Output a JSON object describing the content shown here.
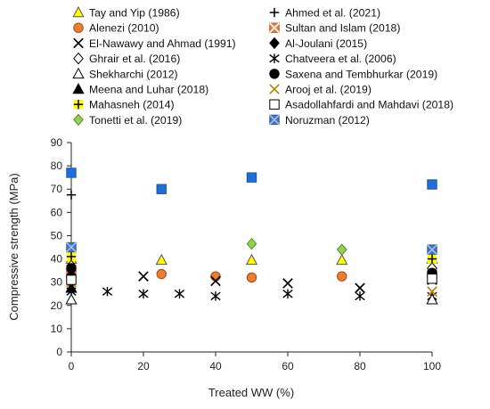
{
  "chart_data": {
    "type": "scatter",
    "title": "",
    "xlabel": "Treated WW (%)",
    "ylabel": "Compressive strength (MPa)",
    "xlim": [
      0,
      100
    ],
    "ylim": [
      0,
      90
    ],
    "xticks": [
      0,
      20,
      40,
      60,
      80,
      100
    ],
    "yticks": [
      0,
      10,
      20,
      30,
      40,
      50,
      60,
      70,
      80,
      90
    ],
    "grid": false,
    "legend_position": "top",
    "series": [
      {
        "name": "Tay and Yip (1986)",
        "marker": "triangle",
        "fill": "#ffff00",
        "stroke": "#555555",
        "points": [
          [
            0,
            40
          ],
          [
            25,
            39.5
          ],
          [
            50,
            39.5
          ],
          [
            75,
            39.5
          ],
          [
            100,
            40
          ]
        ]
      },
      {
        "name": "Ahmed et al. (2021)",
        "marker": "plus",
        "fill": "none",
        "stroke": "#000000",
        "points": [
          [
            0,
            67.5
          ]
        ]
      },
      {
        "name": "Alenezi (2010)",
        "marker": "circle",
        "fill": "#ed7d31",
        "stroke": "#a04a10",
        "points": [
          [
            0,
            35
          ],
          [
            25,
            33.5
          ],
          [
            40,
            32.5
          ],
          [
            50,
            32
          ],
          [
            75,
            32.5
          ],
          [
            100,
            32
          ]
        ]
      },
      {
        "name": "Sultan and Islam (2018)",
        "marker": "square-x",
        "fill": "#ed7d31",
        "stroke": "#c0504d",
        "points": [
          [
            0,
            34
          ],
          [
            100,
            33.5
          ]
        ]
      },
      {
        "name": "El-Nawawy and Ahmad (1991)",
        "marker": "x",
        "fill": "none",
        "stroke": "#000000",
        "points": [
          [
            0,
            28
          ],
          [
            20,
            32.5
          ],
          [
            40,
            30.5
          ],
          [
            60,
            29.5
          ],
          [
            80,
            27.5
          ],
          [
            100,
            31
          ]
        ]
      },
      {
        "name": "Al-Joulani (2015)",
        "marker": "diamond",
        "fill": "#000000",
        "stroke": "#000000",
        "points": [
          [
            0,
            33
          ],
          [
            100,
            33
          ]
        ]
      },
      {
        "name": "Ghrair et al. (2016)",
        "marker": "diamond",
        "fill": "#ffffff",
        "stroke": "#000000",
        "points": [
          [
            0,
            37
          ],
          [
            100,
            36
          ]
        ]
      },
      {
        "name": "Chatveera et al. (2006)",
        "marker": "star",
        "fill": "none",
        "stroke": "#000000",
        "points": [
          [
            0,
            26
          ],
          [
            10,
            26
          ],
          [
            20,
            25
          ],
          [
            30,
            25
          ],
          [
            40,
            24
          ],
          [
            60,
            25
          ],
          [
            80,
            24
          ],
          [
            100,
            24
          ]
        ]
      },
      {
        "name": "Shekharchi (2012)",
        "marker": "triangle",
        "fill": "#ffffff",
        "stroke": "#000000",
        "points": [
          [
            0,
            22.5
          ],
          [
            100,
            22.5
          ]
        ]
      },
      {
        "name": "Saxena and Tembhurkar (2019)",
        "marker": "circle",
        "fill": "#000000",
        "stroke": "#000000",
        "points": [
          [
            0,
            36
          ],
          [
            100,
            34
          ]
        ]
      },
      {
        "name": "Meena and Luhar (2018)",
        "marker": "triangle",
        "fill": "#000000",
        "stroke": "#000000",
        "points": [
          [
            0,
            27.5
          ]
        ]
      },
      {
        "name": "Arooj et al. (2019)",
        "marker": "x",
        "fill": "none",
        "stroke": "#b8860b",
        "points": [
          [
            0,
            30
          ],
          [
            100,
            26
          ]
        ]
      },
      {
        "name": "Mahasneh (2014)",
        "marker": "plus-square",
        "fill": "#ffff00",
        "stroke": "#000000",
        "points": [
          [
            0,
            41
          ],
          [
            100,
            40
          ]
        ]
      },
      {
        "name": "Asadollahfardi and Mahdavi (2018)",
        "marker": "square",
        "fill": "#ffffff",
        "stroke": "#000000",
        "points": [
          [
            0,
            31
          ],
          [
            100,
            31.5
          ]
        ]
      },
      {
        "name": "Tonetti et al. (2019)",
        "marker": "diamond",
        "fill": "#92d050",
        "stroke": "#5a8a2a",
        "points": [
          [
            50,
            46.5
          ],
          [
            75,
            44
          ]
        ]
      },
      {
        "name": "Noruzman (2012)",
        "marker": "square-x",
        "fill": "#4472c4",
        "stroke": "#2f5597",
        "points": [
          [
            0,
            45
          ],
          [
            100,
            44
          ]
        ]
      },
      {
        "name": "",
        "marker": "square",
        "fill": "#1f6fd6",
        "stroke": "#1a55a8",
        "points": [
          [
            0,
            77
          ],
          [
            25,
            70
          ],
          [
            50,
            75
          ],
          [
            100,
            72
          ]
        ]
      }
    ]
  }
}
